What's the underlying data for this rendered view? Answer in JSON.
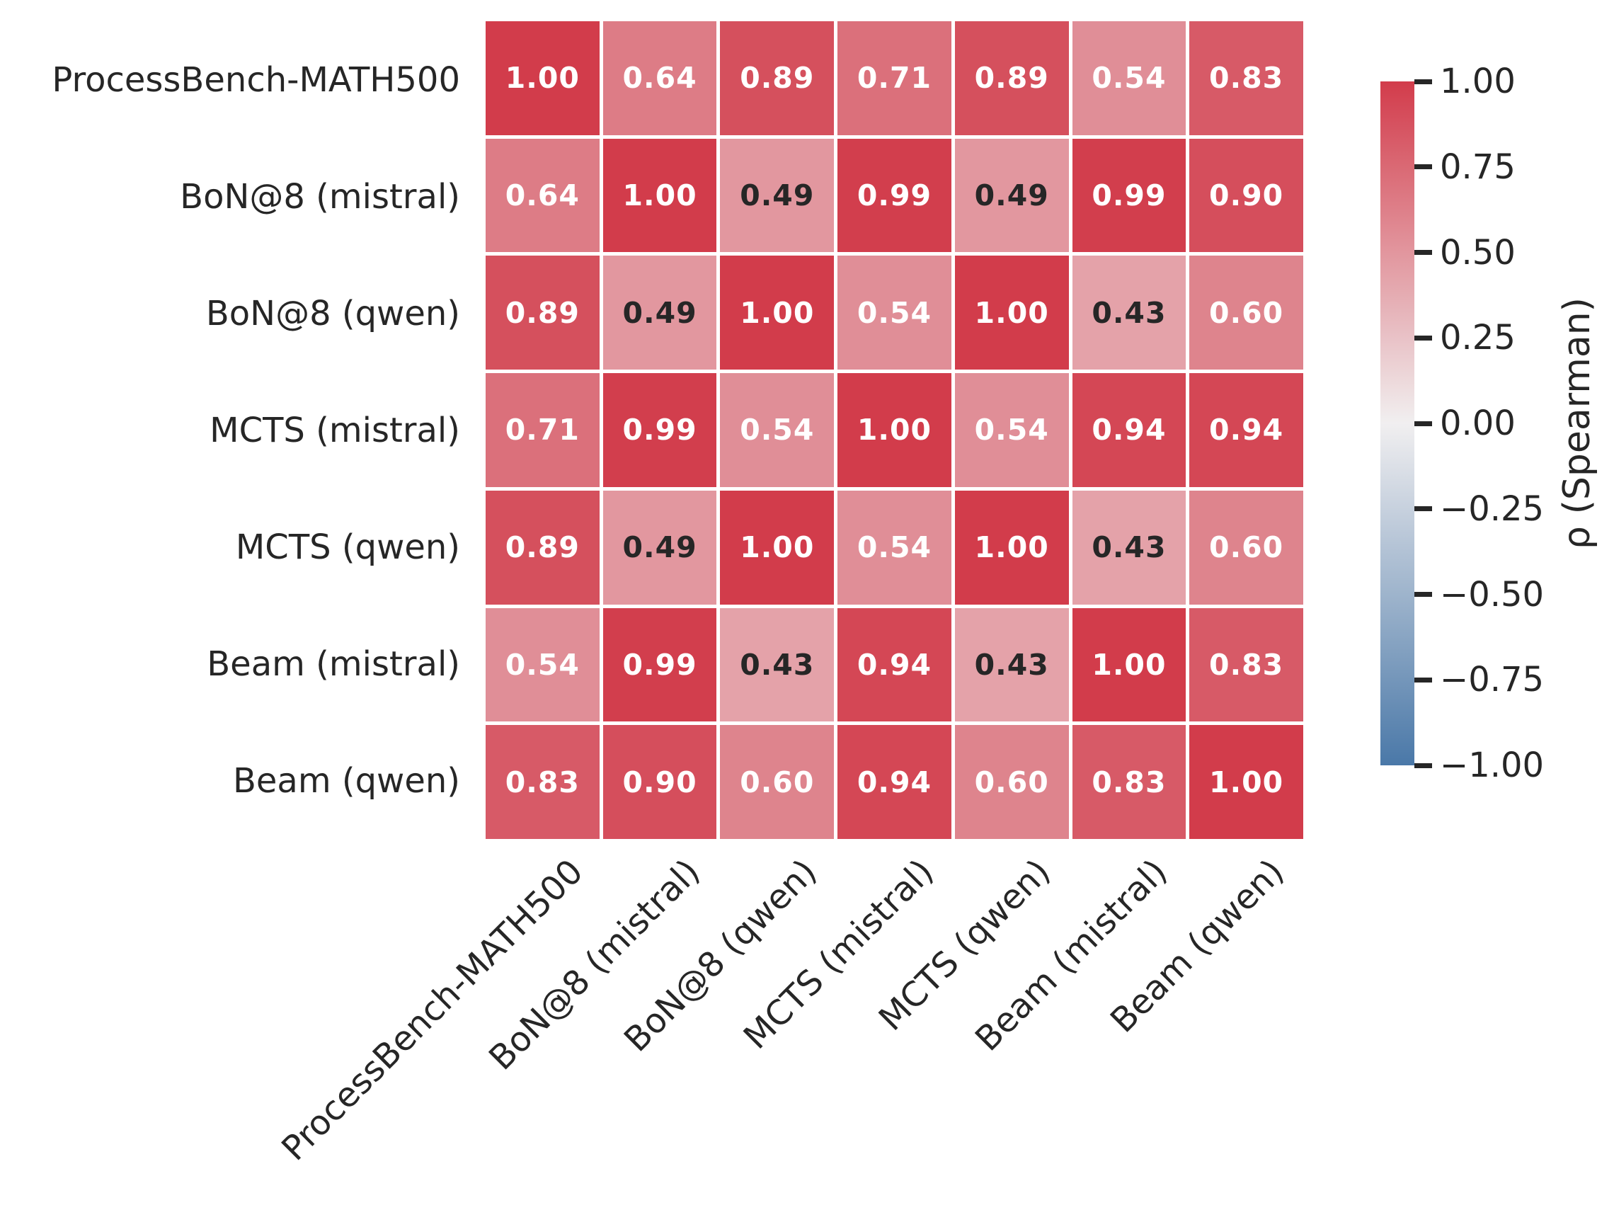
{
  "chart_data": {
    "type": "heatmap",
    "title": "",
    "categories": [
      "ProcessBench-MATH500",
      "BoN@8 (mistral)",
      "BoN@8 (qwen)",
      "MCTS (mistral)",
      "MCTS (qwen)",
      "Beam (mistral)",
      "Beam (qwen)"
    ],
    "matrix": [
      [
        1.0,
        0.64,
        0.89,
        0.71,
        0.89,
        0.54,
        0.83
      ],
      [
        0.64,
        1.0,
        0.49,
        0.99,
        0.49,
        0.99,
        0.9
      ],
      [
        0.89,
        0.49,
        1.0,
        0.54,
        1.0,
        0.43,
        0.6
      ],
      [
        0.71,
        0.99,
        0.54,
        1.0,
        0.54,
        0.94,
        0.94
      ],
      [
        0.89,
        0.49,
        1.0,
        0.54,
        1.0,
        0.43,
        0.6
      ],
      [
        0.54,
        0.99,
        0.43,
        0.94,
        0.43,
        1.0,
        0.83
      ],
      [
        0.83,
        0.9,
        0.6,
        0.94,
        0.6,
        0.83,
        1.0
      ]
    ],
    "value_format_decimals": 2,
    "annotation_dark_text_threshold": 0.5,
    "colorbar": {
      "label": "ρ (Spearman)",
      "vmin": -1.0,
      "vmax": 1.0,
      "tick_values": [
        1.0,
        0.75,
        0.5,
        0.25,
        0.0,
        -0.25,
        -0.5,
        -0.75,
        -1.0
      ],
      "tick_labels": [
        "1.00",
        "0.75",
        "0.50",
        "0.25",
        "0.00",
        "−0.25",
        "−0.50",
        "−0.75",
        "−1.00"
      ],
      "position": "right"
    },
    "palette": {
      "positive_max": "#d23c4b",
      "zero": "#f1eff0",
      "negative_max": "#4a78a8",
      "annotation_light": "#ffffff",
      "annotation_dark": "#262626",
      "axis_text": "#262626",
      "gridline": "#ffffff"
    },
    "layout": {
      "grid_on": false,
      "x_tick_rotation_deg": 45,
      "legend_position": "none"
    }
  }
}
